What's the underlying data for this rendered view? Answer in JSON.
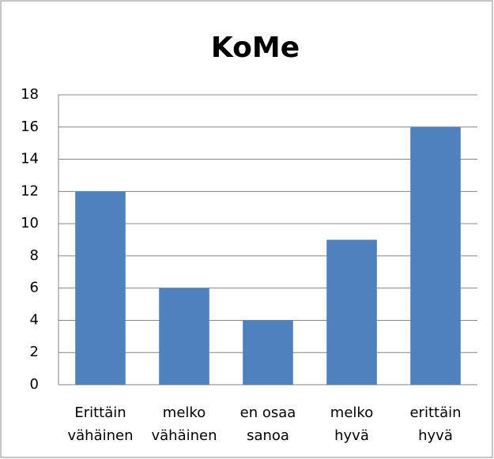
{
  "chart_data": {
    "type": "bar",
    "title": "KoMe",
    "categories": [
      "Erittäin\nvähäinen",
      "melko\nvähäinen",
      "en osaa\nsanoa",
      "melko\nhyvä",
      "erittäin\nhyvä"
    ],
    "values": [
      12,
      6,
      4,
      9,
      16
    ],
    "color": "#4f81bd",
    "ylim": [
      0,
      18
    ],
    "yticks": [
      0,
      2,
      4,
      6,
      8,
      10,
      12,
      14,
      16,
      18
    ],
    "grid": true
  }
}
